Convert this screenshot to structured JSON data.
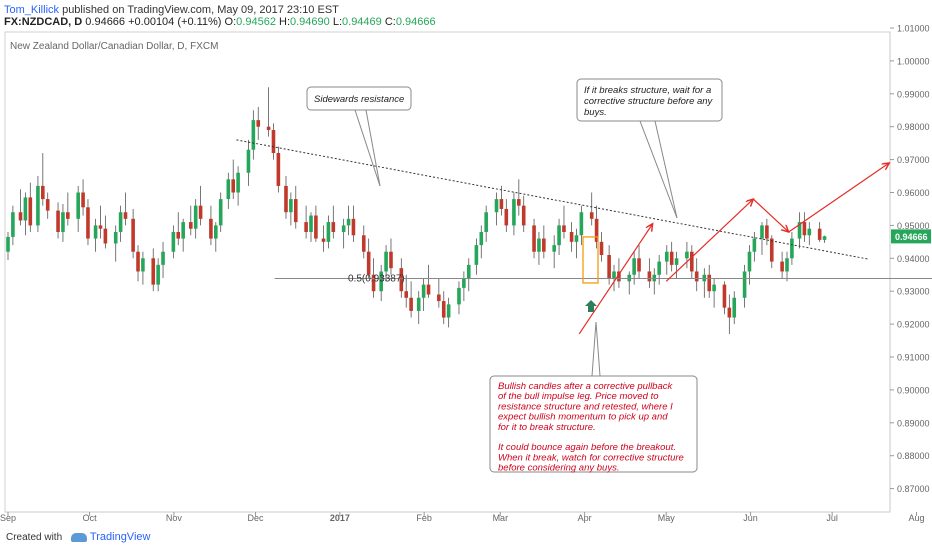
{
  "header": {
    "author": "Tom_Killick",
    "published": " published on TradingView.com, May 09, 2017 23:10 EST",
    "symbol": "FX:NZDCAD, D",
    "last": "0.94666",
    "change": "+0.00104 (+0.11%)",
    "o_label": "O:",
    "o_val": "0.94562",
    "h_label": "H:",
    "h_val": "0.94690",
    "l_label": "L:",
    "l_val": "0.94469",
    "c_label": "C:",
    "c_val": "0.94666"
  },
  "footer": {
    "created_with": "Created with",
    "brand": "TradingView"
  },
  "colors": {
    "up": "#26a65b",
    "down": "#c0392b",
    "arrow": "#e52d27",
    "price_tag": "#26a65b",
    "buy_marker": "#2e7d5b",
    "box": "#f39c12"
  },
  "chart_data": {
    "type": "candlestick",
    "title": "New Zealand Dollar/Canadian Dollar, D, FXCM",
    "y_ticks": [
      "1.01000",
      "1.00000",
      "0.99000",
      "0.98000",
      "0.97000",
      "0.96000",
      "0.95000",
      "0.94000",
      "0.93000",
      "0.92000",
      "0.91000",
      "0.90000",
      "0.89000",
      "0.88000",
      "0.87000"
    ],
    "x_ticks": [
      "Sep",
      "Oct",
      "Nov",
      "Dec",
      "2017",
      "Feb",
      "Mar",
      "Apr",
      "May",
      "Jun",
      "Jul",
      "Aug"
    ],
    "ylim": [
      0.8625,
      1.0175
    ],
    "last_price": "0.94666",
    "fib_label": "0.5(0.93387)",
    "fib_level": 0.93387,
    "candles": [
      [
        0.942,
        0.948,
        0.9395,
        0.9465
      ],
      [
        0.9465,
        0.956,
        0.944,
        0.954
      ],
      [
        0.954,
        0.961,
        0.95,
        0.9515
      ],
      [
        0.9515,
        0.96,
        0.947,
        0.9585
      ],
      [
        0.9585,
        0.963,
        0.948,
        0.95
      ],
      [
        0.95,
        0.965,
        0.948,
        0.962
      ],
      [
        0.962,
        0.972,
        0.956,
        0.958
      ],
      [
        0.958,
        0.96,
        0.952,
        0.9545
      ],
      [
        0.9545,
        0.957,
        0.946,
        0.948
      ],
      [
        0.948,
        0.9565,
        0.945,
        0.954
      ],
      [
        0.954,
        0.96,
        0.95,
        0.952
      ],
      [
        0.952,
        0.962,
        0.948,
        0.96
      ],
      [
        0.96,
        0.964,
        0.953,
        0.9555
      ],
      [
        0.9555,
        0.958,
        0.944,
        0.946
      ],
      [
        0.946,
        0.952,
        0.942,
        0.95
      ],
      [
        0.95,
        0.956,
        0.946,
        0.949
      ],
      [
        0.949,
        0.953,
        0.943,
        0.9445
      ],
      [
        0.9445,
        0.95,
        0.939,
        0.948
      ],
      [
        0.948,
        0.956,
        0.945,
        0.954
      ],
      [
        0.954,
        0.96,
        0.95,
        0.952
      ],
      [
        0.952,
        0.955,
        0.94,
        0.942
      ],
      [
        0.942,
        0.944,
        0.933,
        0.936
      ],
      [
        0.936,
        0.942,
        0.932,
        0.94
      ],
      [
        0.94,
        0.943,
        0.93,
        0.932
      ],
      [
        0.932,
        0.94,
        0.93,
        0.938
      ],
      [
        0.938,
        0.945,
        0.934,
        0.942
      ],
      [
        0.942,
        0.95,
        0.94,
        0.948
      ],
      [
        0.948,
        0.954,
        0.944,
        0.946
      ],
      [
        0.946,
        0.952,
        0.942,
        0.951
      ],
      [
        0.951,
        0.956,
        0.947,
        0.949
      ],
      [
        0.949,
        0.958,
        0.946,
        0.956
      ],
      [
        0.956,
        0.962,
        0.95,
        0.952
      ],
      [
        0.952,
        0.956,
        0.944,
        0.946
      ],
      [
        0.946,
        0.951,
        0.942,
        0.95
      ],
      [
        0.95,
        0.96,
        0.948,
        0.958
      ],
      [
        0.958,
        0.966,
        0.955,
        0.964
      ],
      [
        0.964,
        0.97,
        0.958,
        0.96
      ],
      [
        0.96,
        0.968,
        0.956,
        0.966
      ],
      [
        0.966,
        0.976,
        0.962,
        0.973
      ],
      [
        0.973,
        0.985,
        0.97,
        0.982
      ],
      [
        0.982,
        0.986,
        0.976,
        0.98
      ],
      [
        0.98,
        0.992,
        0.977,
        0.979
      ],
      [
        0.979,
        0.981,
        0.97,
        0.972
      ],
      [
        0.972,
        0.974,
        0.96,
        0.962
      ],
      [
        0.962,
        0.965,
        0.952,
        0.954
      ],
      [
        0.954,
        0.96,
        0.95,
        0.958
      ],
      [
        0.958,
        0.962,
        0.949,
        0.951
      ],
      [
        0.951,
        0.956,
        0.946,
        0.948
      ],
      [
        0.948,
        0.954,
        0.945,
        0.953
      ],
      [
        0.953,
        0.956,
        0.945,
        0.946
      ],
      [
        0.946,
        0.95,
        0.942,
        0.945
      ],
      [
        0.945,
        0.953,
        0.943,
        0.951
      ],
      [
        0.951,
        0.956,
        0.946,
        0.948
      ],
      [
        0.948,
        0.952,
        0.943,
        0.95
      ],
      [
        0.95,
        0.956,
        0.947,
        0.952
      ],
      [
        0.952,
        0.956,
        0.945,
        0.947
      ],
      [
        0.947,
        0.95,
        0.94,
        0.942
      ],
      [
        0.942,
        0.946,
        0.934,
        0.935
      ],
      [
        0.935,
        0.94,
        0.928,
        0.93
      ],
      [
        0.93,
        0.938,
        0.927,
        0.936
      ],
      [
        0.936,
        0.944,
        0.933,
        0.942
      ],
      [
        0.942,
        0.946,
        0.935,
        0.937
      ],
      [
        0.937,
        0.94,
        0.928,
        0.93
      ],
      [
        0.93,
        0.935,
        0.925,
        0.928
      ],
      [
        0.928,
        0.933,
        0.922,
        0.924
      ],
      [
        0.924,
        0.93,
        0.92,
        0.928
      ],
      [
        0.928,
        0.934,
        0.924,
        0.932
      ],
      [
        0.932,
        0.938,
        0.928,
        0.929
      ],
      [
        0.929,
        0.934,
        0.925,
        0.927
      ],
      [
        0.927,
        0.93,
        0.92,
        0.922
      ],
      [
        0.922,
        0.928,
        0.919,
        0.926
      ],
      [
        0.926,
        0.933,
        0.923,
        0.931
      ],
      [
        0.931,
        0.936,
        0.927,
        0.934
      ],
      [
        0.934,
        0.94,
        0.93,
        0.938
      ],
      [
        0.938,
        0.946,
        0.935,
        0.944
      ],
      [
        0.944,
        0.95,
        0.94,
        0.948
      ],
      [
        0.948,
        0.956,
        0.945,
        0.954
      ],
      [
        0.954,
        0.96,
        0.95,
        0.958
      ],
      [
        0.958,
        0.962,
        0.953,
        0.955
      ],
      [
        0.955,
        0.958,
        0.948,
        0.95
      ],
      [
        0.95,
        0.96,
        0.947,
        0.958
      ],
      [
        0.958,
        0.964,
        0.953,
        0.956
      ],
      [
        0.956,
        0.959,
        0.948,
        0.95
      ],
      [
        0.95,
        0.952,
        0.94,
        0.942
      ],
      [
        0.942,
        0.948,
        0.938,
        0.946
      ],
      [
        0.946,
        0.95,
        0.94,
        0.942
      ],
      [
        0.942,
        0.947,
        0.937,
        0.944
      ],
      [
        0.944,
        0.952,
        0.941,
        0.95
      ],
      [
        0.95,
        0.956,
        0.946,
        0.948
      ],
      [
        0.948,
        0.951,
        0.942,
        0.945
      ],
      [
        0.945,
        0.949,
        0.94,
        0.947
      ],
      [
        0.947,
        0.956,
        0.944,
        0.954
      ],
      [
        0.954,
        0.96,
        0.95,
        0.952
      ],
      [
        0.952,
        0.956,
        0.943,
        0.945
      ],
      [
        0.945,
        0.948,
        0.939,
        0.941
      ],
      [
        0.941,
        0.944,
        0.932,
        0.934
      ],
      [
        0.934,
        0.938,
        0.93,
        0.936
      ],
      [
        0.936,
        0.94,
        0.931,
        0.933
      ],
      [
        0.933,
        0.936,
        0.929,
        0.935
      ],
      [
        0.935,
        0.942,
        0.932,
        0.94
      ],
      [
        0.94,
        0.944,
        0.934,
        0.936
      ],
      [
        0.936,
        0.94,
        0.931,
        0.933
      ],
      [
        0.933,
        0.937,
        0.929,
        0.935
      ],
      [
        0.935,
        0.941,
        0.932,
        0.939
      ],
      [
        0.939,
        0.944,
        0.935,
        0.942
      ],
      [
        0.942,
        0.945,
        0.936,
        0.938
      ],
      [
        0.938,
        0.942,
        0.934,
        0.94
      ],
      [
        0.94,
        0.945,
        0.937,
        0.942
      ],
      [
        0.942,
        0.944,
        0.934,
        0.936
      ],
      [
        0.936,
        0.94,
        0.93,
        0.933
      ],
      [
        0.933,
        0.937,
        0.928,
        0.935
      ],
      [
        0.935,
        0.938,
        0.928,
        0.93
      ],
      [
        0.93,
        0.934,
        0.925,
        0.932
      ],
      [
        0.932,
        0.933,
        0.923,
        0.925
      ],
      [
        0.925,
        0.929,
        0.917,
        0.922
      ],
      [
        0.922,
        0.93,
        0.92,
        0.928
      ],
      [
        0.928,
        0.938,
        0.925,
        0.936
      ],
      [
        0.936,
        0.944,
        0.932,
        0.942
      ],
      [
        0.942,
        0.948,
        0.939,
        0.946
      ],
      [
        0.946,
        0.951,
        0.941,
        0.95
      ],
      [
        0.95,
        0.952,
        0.944,
        0.946
      ],
      [
        0.946,
        0.947,
        0.937,
        0.939
      ],
      [
        0.939,
        0.942,
        0.934,
        0.936
      ],
      [
        0.936,
        0.942,
        0.933,
        0.94
      ],
      [
        0.94,
        0.948,
        0.938,
        0.946
      ],
      [
        0.946,
        0.954,
        0.943,
        0.951
      ],
      [
        0.951,
        0.954,
        0.945,
        0.947
      ],
      [
        0.947,
        0.951,
        0.944,
        0.949
      ],
      [
        0.949,
        0.951,
        0.945,
        0.9456
      ],
      [
        0.9456,
        0.9469,
        0.9447,
        0.9467
      ]
    ],
    "trendline": {
      "from": [
        "2016-11-24",
        0.976
      ],
      "to": [
        "2017-07-14",
        0.9398
      ]
    },
    "projection_arrows": [
      {
        "from": [
          "2017-03-30",
          0.917
        ],
        "to": [
          "2017-04-26",
          0.9505
        ]
      },
      {
        "from": [
          "2017-05-01",
          0.933
        ],
        "to": [
          "2017-06-02",
          0.958
        ]
      },
      {
        "from": [
          "2017-06-02",
          0.958
        ],
        "to": [
          "2017-06-15",
          0.948
        ]
      },
      {
        "from": [
          "2017-06-15",
          0.948
        ],
        "to": [
          "2017-07-22",
          0.969
        ]
      }
    ],
    "annotations": {
      "sidewards": "Sidewards resistance",
      "breaks": [
        "If it breaks structure, wait for a",
        "corrective structure before any",
        "buys."
      ],
      "bullish": [
        "Bullish candles after a corrective pullback",
        "of the bull impulse leg. Price moved to",
        "resistance structure and retested, where I",
        "expect bullish momentum to pick up and",
        "for it to break structure.",
        "",
        "It could bounce again before the breakout.",
        "When it break, watch for corrective structure",
        "before considering any buys."
      ]
    }
  }
}
